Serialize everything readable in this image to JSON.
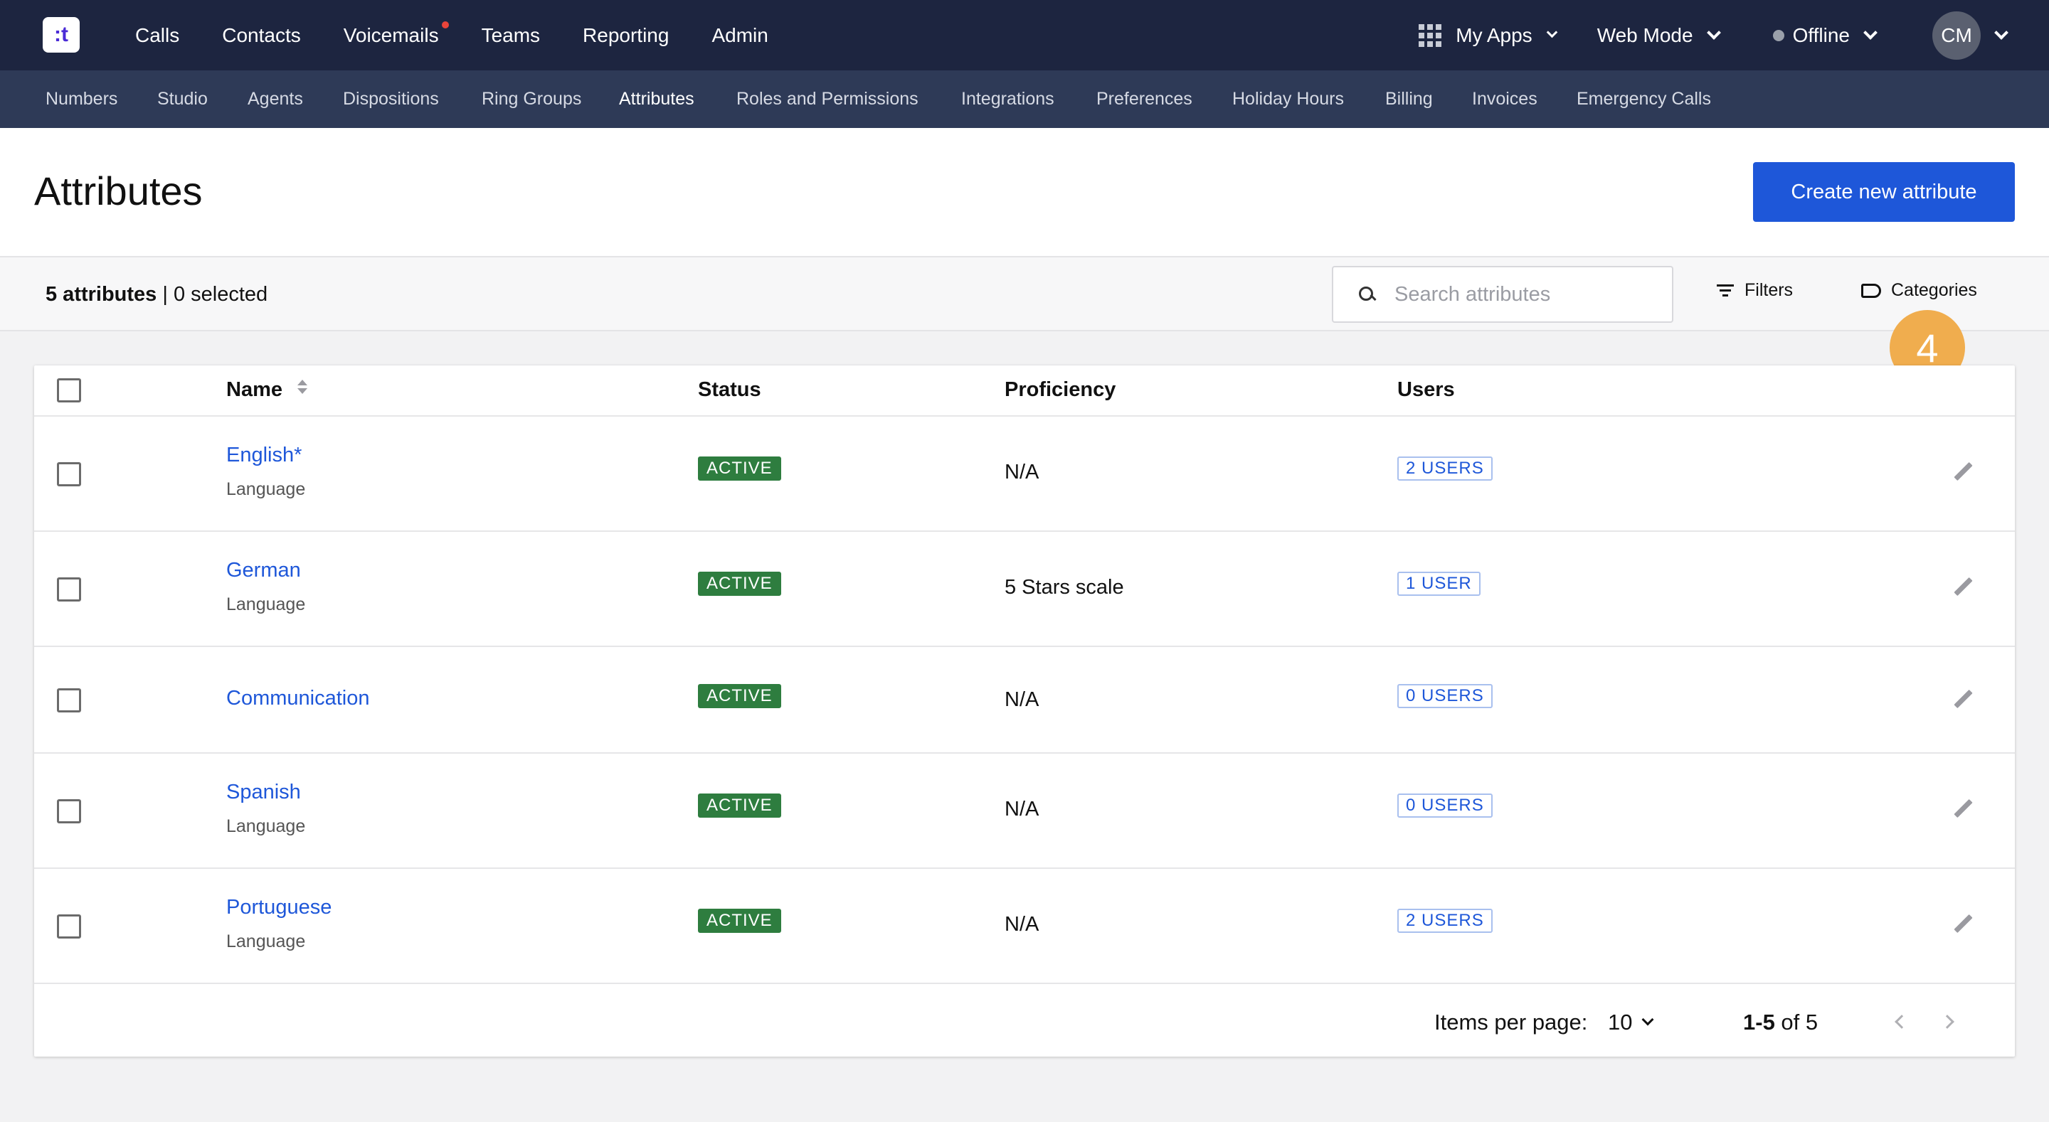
{
  "app": {
    "logo_text": ":t"
  },
  "topnav": {
    "items": [
      "Calls",
      "Contacts",
      "Voicemails",
      "Teams",
      "Reporting",
      "Admin"
    ],
    "my_apps": "My Apps",
    "web_mode": "Web Mode",
    "presence": "Offline",
    "avatar_initials": "CM"
  },
  "subnav": {
    "items": [
      "Numbers",
      "Studio",
      "Agents",
      "Dispositions",
      "Ring Groups",
      "Attributes",
      "Roles and Permissions",
      "Integrations",
      "Preferences",
      "Holiday Hours",
      "Billing",
      "Invoices",
      "Emergency Calls"
    ],
    "active": "Attributes"
  },
  "header": {
    "title": "Attributes",
    "create_button": "Create new attribute"
  },
  "toolbar": {
    "count_bold": "5 attributes",
    "count_rest": " | 0 selected",
    "search_placeholder": "Search attributes",
    "filters_label": "Filters",
    "categories_label": "Categories",
    "step_badge": "4"
  },
  "table": {
    "columns": {
      "name": "Name",
      "status": "Status",
      "proficiency": "Proficiency",
      "users": "Users"
    },
    "rows": [
      {
        "name": "English*",
        "category": "Language",
        "status": "ACTIVE",
        "proficiency": "N/A",
        "users": "2 USERS"
      },
      {
        "name": "German",
        "category": "Language",
        "status": "ACTIVE",
        "proficiency": "5 Stars scale",
        "users": "1 USER"
      },
      {
        "name": "Communication",
        "category": "",
        "status": "ACTIVE",
        "proficiency": "N/A",
        "users": "0 USERS"
      },
      {
        "name": "Spanish",
        "category": "Language",
        "status": "ACTIVE",
        "proficiency": "N/A",
        "users": "0 USERS"
      },
      {
        "name": "Portuguese",
        "category": "Language",
        "status": "ACTIVE",
        "proficiency": "N/A",
        "users": "2 USERS"
      }
    ]
  },
  "pagination": {
    "items_per_page_label": "Items per page:",
    "items_per_page_value": "10",
    "range_bold": "1-5",
    "range_rest": " of 5"
  }
}
